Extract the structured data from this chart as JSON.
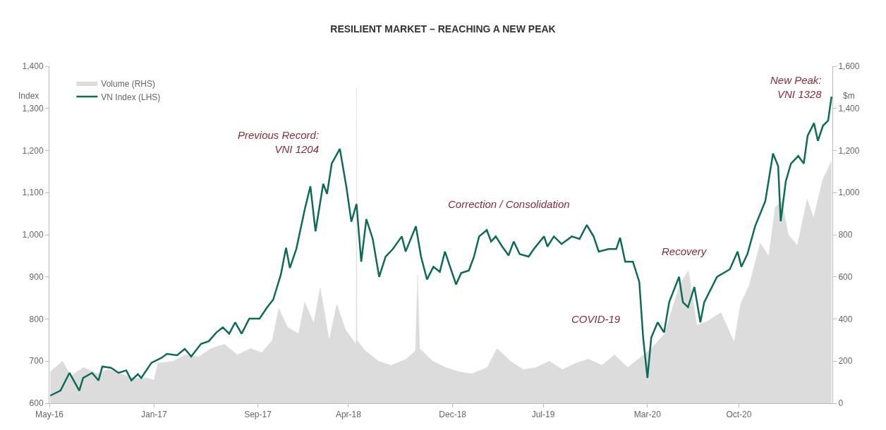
{
  "chart_data": {
    "type": "line",
    "title": "RESILIENT MARKET – REACHING A NEW PEAK",
    "ylabel": "Index",
    "y2label": "$m",
    "xlim": [
      "2016-05-01",
      "2021-05-08"
    ],
    "xticks": [
      {
        "value": "2016-05-01",
        "label": "May-16"
      },
      {
        "value": "2017-01-01",
        "label": "Jan-17"
      },
      {
        "value": "2017-09-01",
        "label": "Sep-17"
      },
      {
        "value": "2018-04-01",
        "label": "Apr-18"
      },
      {
        "value": "2018-12-01",
        "label": "Dec-18"
      },
      {
        "value": "2019-07-01",
        "label": "Jul-19"
      },
      {
        "value": "2020-03-01",
        "label": "Mar-20"
      },
      {
        "value": "2020-10-01",
        "label": "Oct-20"
      }
    ],
    "ylim": [
      600,
      1400
    ],
    "yticks": [
      600,
      700,
      800,
      900,
      {
        "value": 1000,
        "label": "1,000"
      },
      {
        "value": 1100,
        "label": "1,100"
      },
      {
        "value": 1200,
        "label": "1,200"
      },
      {
        "value": 1300,
        "label": "1,300"
      },
      {
        "value": 1400,
        "label": "1,400"
      }
    ],
    "y2lim": [
      0,
      1600
    ],
    "y2ticks": [
      0,
      200,
      400,
      600,
      800,
      {
        "value": 1000,
        "label": "1,000"
      },
      {
        "value": 1200,
        "label": "1,200"
      },
      {
        "value": 1400,
        "label": "1,400"
      },
      {
        "value": 1600,
        "label": "1,600"
      }
    ],
    "grid": false,
    "legend": "top left",
    "marker": "none",
    "line_style": "solid",
    "series": [
      {
        "name": "Volume (RHS)",
        "type": "area",
        "axis": "y2",
        "color": "#dcdcdc",
        "x": [
          "2016-05-03",
          "2016-06-01",
          "2016-06-20",
          "2016-07-20",
          "2016-08-20",
          "2016-09-15",
          "2016-10-15",
          "2016-11-15",
          "2016-12-15",
          "2017-01-01",
          "2017-01-10",
          "2017-02-15",
          "2017-03-15",
          "2017-04-15",
          "2017-05-15",
          "2017-06-15",
          "2017-07-15",
          "2017-08-15",
          "2017-09-10",
          "2017-10-05",
          "2017-10-20",
          "2017-11-10",
          "2017-12-05",
          "2017-12-20",
          "2018-01-10",
          "2018-01-25",
          "2018-02-15",
          "2018-03-05",
          "2018-03-25",
          "2018-04-19",
          "2018-04-20",
          "2018-04-21",
          "2018-05-10",
          "2018-06-10",
          "2018-07-10",
          "2018-08-15",
          "2018-09-05",
          "2018-09-10",
          "2018-09-15",
          "2018-10-15",
          "2018-11-15",
          "2018-12-15",
          "2019-01-15",
          "2019-02-20",
          "2019-03-15",
          "2019-04-15",
          "2019-05-15",
          "2019-06-15",
          "2019-07-15",
          "2019-08-15",
          "2019-09-15",
          "2019-10-15",
          "2019-11-15",
          "2019-12-15",
          "2020-01-15",
          "2020-02-15",
          "2020-03-10",
          "2020-04-10",
          "2020-05-15",
          "2020-06-05",
          "2020-06-25",
          "2020-07-20",
          "2020-08-20",
          "2020-09-20",
          "2020-10-05",
          "2020-10-25",
          "2020-11-20",
          "2020-12-10",
          "2020-12-25",
          "2021-01-10",
          "2021-01-25",
          "2021-02-15",
          "2021-03-10",
          "2021-03-25",
          "2021-04-15",
          "2021-05-06"
        ],
        "values": [
          150,
          200,
          130,
          170,
          140,
          160,
          140,
          120,
          120,
          110,
          190,
          200,
          230,
          220,
          260,
          280,
          230,
          260,
          240,
          300,
          450,
          360,
          330,
          480,
          380,
          550,
          300,
          470,
          350,
          280,
          1500,
          300,
          250,
          200,
          180,
          210,
          250,
          610,
          260,
          200,
          170,
          150,
          140,
          170,
          260,
          200,
          160,
          170,
          200,
          160,
          190,
          210,
          180,
          230,
          170,
          220,
          260,
          330,
          560,
          630,
          370,
          390,
          430,
          290,
          470,
          560,
          760,
          700,
          930,
          960,
          800,
          750,
          970,
          880,
          1060,
          1150
        ]
      },
      {
        "name": "VN Index (LHS)",
        "type": "line",
        "color": "#0e6b5a",
        "x": [
          "2016-05-03",
          "2016-05-27",
          "2016-06-17",
          "2016-07-10",
          "2016-07-19",
          "2016-08-09",
          "2016-08-24",
          "2016-09-02",
          "2016-09-22",
          "2016-10-10",
          "2016-10-28",
          "2016-11-09",
          "2016-11-24",
          "2016-12-02",
          "2016-12-26",
          "2017-01-19",
          "2017-01-31",
          "2017-02-24",
          "2017-03-14",
          "2017-03-29",
          "2017-04-21",
          "2017-05-09",
          "2017-05-27",
          "2017-06-11",
          "2017-06-26",
          "2017-07-10",
          "2017-07-25",
          "2017-08-12",
          "2017-09-05",
          "2017-09-23",
          "2017-10-07",
          "2017-10-25",
          "2017-11-06",
          "2017-11-15",
          "2017-11-30",
          "2017-12-20",
          "2018-01-02",
          "2018-01-14",
          "2018-02-01",
          "2018-02-10",
          "2018-02-21",
          "2018-03-12",
          "2018-03-27",
          "2018-04-08",
          "2018-04-20",
          "2018-05-01",
          "2018-05-13",
          "2018-05-28",
          "2018-06-12",
          "2018-06-27",
          "2018-07-14",
          "2018-08-04",
          "2018-08-13",
          "2018-09-06",
          "2018-09-18",
          "2018-10-02",
          "2018-10-17",
          "2018-11-01",
          "2018-11-13",
          "2018-12-09",
          "2018-12-21",
          "2019-01-08",
          "2019-01-20",
          "2019-02-01",
          "2019-02-19",
          "2019-03-01",
          "2019-03-12",
          "2019-03-27",
          "2019-04-11",
          "2019-04-23",
          "2019-05-07",
          "2019-05-28",
          "2019-06-09",
          "2019-07-03",
          "2019-07-11",
          "2019-07-26",
          "2019-08-13",
          "2019-09-06",
          "2019-09-24",
          "2019-10-11",
          "2019-10-27",
          "2019-11-08",
          "2019-12-01",
          "2019-12-19",
          "2019-12-28",
          "2020-01-09",
          "2020-01-27",
          "2020-02-11",
          "2020-02-20",
          "2020-03-01",
          "2020-03-10",
          "2020-03-25",
          "2020-04-09",
          "2020-04-21",
          "2020-05-14",
          "2020-05-23",
          "2020-06-04",
          "2020-06-19",
          "2020-07-03",
          "2020-07-12",
          "2020-08-11",
          "2020-09-10",
          "2020-09-28",
          "2020-10-07",
          "2020-10-21",
          "2020-11-08",
          "2020-12-02",
          "2020-12-20",
          "2021-01-01",
          "2021-01-07",
          "2021-01-19",
          "2021-01-31",
          "2021-02-17",
          "2021-03-02",
          "2021-03-11",
          "2021-03-26",
          "2021-04-04",
          "2021-04-16",
          "2021-04-28",
          "2021-05-06"
        ],
        "values": [
          618,
          630,
          672,
          630,
          660,
          672,
          654,
          687,
          684,
          672,
          678,
          654,
          669,
          660,
          696,
          708,
          717,
          714,
          729,
          711,
          741,
          747,
          768,
          780,
          765,
          792,
          765,
          801,
          801,
          828,
          846,
          906,
          969,
          921,
          966,
          1061,
          1115,
          1008,
          1121,
          1097,
          1169,
          1204,
          1115,
          1031,
          1073,
          936,
          1037,
          990,
          900,
          948,
          966,
          996,
          960,
          1020,
          948,
          894,
          924,
          912,
          960,
          882,
          909,
          915,
          948,
          996,
          1011,
          984,
          996,
          972,
          951,
          984,
          954,
          948,
          966,
          996,
          972,
          996,
          978,
          996,
          990,
          1023,
          996,
          960,
          966,
          966,
          993,
          936,
          936,
          888,
          756,
          660,
          756,
          792,
          768,
          840,
          900,
          840,
          828,
          876,
          792,
          840,
          900,
          918,
          960,
          924,
          954,
          1020,
          1080,
          1193,
          1163,
          1032,
          1127,
          1169,
          1187,
          1169,
          1235,
          1265,
          1223,
          1259,
          1271,
          1328
        ]
      }
    ],
    "annotations": [
      {
        "text": "Previous Record:\nVNI 1204",
        "x": "2018-03-12",
        "y": 1204
      },
      {
        "text": "New Peak:\nVNI 1328",
        "x": "2021-05-06",
        "y": 1328
      },
      "Correction / Consolidation",
      "COVID-19",
      "Recovery"
    ]
  }
}
